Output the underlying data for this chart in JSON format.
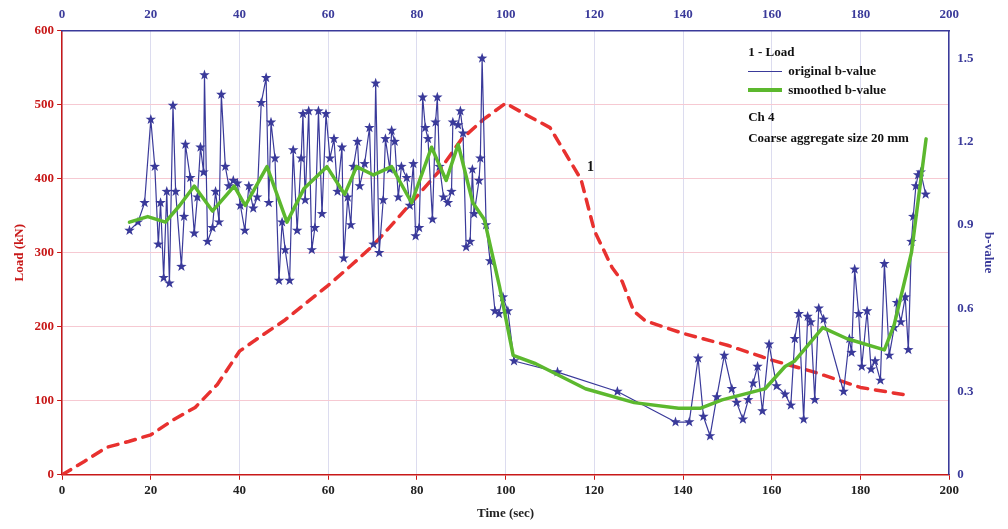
{
  "chart_data": {
    "type": "line",
    "xlabel": "Time (sec)",
    "ylabel": "Load (kN)",
    "y2label": "b-value",
    "xlim": [
      0,
      200
    ],
    "xticks": [
      0,
      20,
      40,
      60,
      80,
      100,
      120,
      140,
      160,
      180,
      200
    ],
    "x2lim": [
      0,
      200
    ],
    "x2ticks": [
      0,
      20,
      40,
      60,
      80,
      100,
      120,
      140,
      160,
      180,
      200
    ],
    "ylim": [
      0,
      600
    ],
    "yticks": [
      0,
      100,
      200,
      300,
      400,
      500,
      600
    ],
    "y2lim": [
      0,
      1.6
    ],
    "y2ticks": [
      0,
      0.3,
      0.6,
      0.9,
      1.2,
      1.5
    ],
    "grid": true,
    "legend": "top right",
    "annotations": [
      "1 - Load",
      "Ch 4",
      "Coarse aggregate size 20 mm",
      {
        "text": "1",
        "x": 117,
        "y": 399
      }
    ],
    "series": [
      {
        "color": "#e8312f",
        "line_style": "dashed",
        "marker": "none",
        "axis": "y",
        "x": [
          0,
          5,
          10,
          15,
          20,
          25,
          30,
          35,
          40,
          45,
          50,
          55,
          60,
          65,
          70,
          75,
          80,
          85,
          90,
          95,
          100,
          105,
          110,
          115,
          117,
          120,
          124,
          126.3,
          128.9,
          131.5,
          140,
          150,
          160,
          170,
          180,
          190
        ],
        "values": [
          0,
          18,
          37,
          45,
          54,
          74,
          91,
          122,
          167,
          188,
          208,
          232,
          256,
          282,
          309,
          342,
          376,
          410,
          453,
          480,
          502,
          485,
          469,
          419,
          399,
          330,
          280,
          261,
          221,
          208,
          191,
          175,
          155,
          138,
          118,
          108
        ]
      },
      {
        "name": "original b-value",
        "color": "#3a3a9a",
        "line_style": "solid",
        "marker": "star",
        "axis": "y2",
        "x": [
          15.2,
          17.1,
          18.6,
          20.0,
          20.9,
          21.7,
          22.2,
          22.9,
          23.6,
          24.2,
          25.0,
          25.6,
          26.9,
          27.5,
          27.8,
          28.9,
          29.8,
          30.5,
          31.2,
          31.9,
          32.1,
          32.8,
          33.9,
          34.6,
          35.4,
          35.9,
          36.8,
          37.6,
          38.6,
          39.5,
          40.2,
          41.2,
          42.1,
          43.1,
          44.0,
          44.9,
          46.0,
          46.6,
          47.1,
          48.0,
          48.9,
          49.6,
          50.3,
          51.3,
          52.1,
          53.0,
          53.9,
          54.3,
          54.8,
          55.6,
          56.3,
          57.0,
          57.8,
          58.6,
          59.5,
          60.4,
          61.3,
          62.1,
          63.1,
          63.5,
          64.4,
          65.1,
          65.7,
          66.6,
          67.1,
          68.2,
          69.3,
          70.2,
          70.7,
          71.5,
          72.4,
          72.9,
          73.9,
          74.3,
          75.0,
          75.8,
          76.5,
          77.7,
          78.4,
          79.2,
          79.7,
          80.5,
          81.3,
          81.9,
          82.5,
          83.5,
          84.2,
          84.6,
          85.1,
          86.0,
          87.0,
          87.8,
          88.1,
          89.3,
          89.8,
          90.4,
          91.1,
          92.0,
          92.5,
          92.9,
          94.0,
          94.3,
          94.7,
          95.6,
          96.5,
          97.6,
          98.5,
          99.4,
          100.5,
          101.9,
          111.7,
          125.2,
          138.3,
          141.4,
          143.4,
          144.6,
          146.1,
          147.6,
          149.3,
          151.0,
          152.1,
          153.5,
          154.7,
          155.8,
          156.8,
          157.9,
          159.4,
          161.1,
          163.0,
          164.3,
          165.2,
          166.1,
          167.2,
          168.1,
          168.8,
          169.7,
          170.6,
          171.7,
          176.2,
          177.5,
          178.0,
          178.7,
          179.6,
          180.3,
          181.5,
          182.4,
          183.3,
          184.5,
          185.4,
          186.5,
          187.6,
          188.2,
          189.1,
          190.1,
          190.8,
          191.5,
          191.9,
          192.5,
          193.0,
          193.6,
          194.7
        ],
        "values": [
          0.88,
          0.91,
          0.98,
          1.28,
          1.11,
          0.83,
          0.98,
          0.71,
          1.02,
          0.69,
          1.33,
          1.02,
          0.75,
          0.93,
          1.19,
          1.07,
          0.87,
          1.0,
          1.18,
          1.09,
          1.44,
          0.84,
          0.89,
          1.02,
          0.91,
          1.37,
          1.11,
          1.04,
          1.06,
          1.05,
          0.97,
          0.88,
          1.04,
          0.96,
          1.0,
          1.34,
          1.43,
          0.98,
          1.27,
          1.14,
          0.7,
          0.91,
          0.81,
          0.7,
          1.17,
          0.88,
          1.14,
          1.3,
          0.99,
          1.31,
          0.81,
          0.89,
          1.31,
          0.94,
          1.3,
          1.14,
          1.21,
          1.02,
          1.18,
          0.78,
          1.0,
          0.9,
          1.11,
          1.2,
          1.04,
          1.12,
          1.25,
          0.83,
          1.41,
          0.8,
          0.99,
          1.21,
          1.1,
          1.24,
          1.2,
          1.0,
          1.11,
          1.07,
          0.97,
          1.12,
          0.86,
          0.89,
          1.36,
          1.25,
          1.21,
          0.92,
          1.27,
          1.36,
          1.11,
          1.0,
          0.98,
          1.02,
          1.27,
          1.26,
          1.31,
          1.23,
          0.82,
          0.84,
          1.1,
          0.94,
          1.06,
          1.14,
          1.5,
          0.9,
          0.77,
          0.59,
          0.58,
          0.64,
          0.59,
          0.41,
          0.37,
          0.3,
          0.19,
          0.19,
          0.42,
          0.21,
          0.14,
          0.28,
          0.43,
          0.31,
          0.26,
          0.2,
          0.27,
          0.33,
          0.39,
          0.23,
          0.47,
          0.32,
          0.29,
          0.25,
          0.49,
          0.58,
          0.2,
          0.57,
          0.55,
          0.27,
          0.6,
          0.56,
          0.3,
          0.49,
          0.44,
          0.74,
          0.58,
          0.39,
          0.59,
          0.38,
          0.41,
          0.34,
          0.76,
          0.43,
          0.53,
          0.62,
          0.55,
          0.64,
          0.45,
          0.84,
          0.93,
          1.04,
          1.08,
          1.09,
          1.01
        ]
      },
      {
        "name": "smoothed b-value",
        "color": "#5cb82e",
        "line_style": "solid",
        "marker": "none",
        "axis": "y2",
        "x": [
          15.2,
          19.3,
          23.3,
          26.5,
          29.8,
          33.9,
          38.8,
          41.3,
          46.2,
          50.7,
          54.5,
          59.7,
          63.7,
          66.4,
          70.2,
          74.3,
          78.8,
          83.3,
          86.6,
          89.3,
          92.6,
          95.2,
          98.6,
          101.7,
          106.8,
          118,
          129,
          139,
          144,
          148.8,
          158.5,
          163,
          165.2,
          171.5,
          177,
          185.4,
          187.6,
          191.5,
          194.8
        ],
        "values": [
          0.91,
          0.93,
          0.91,
          0.97,
          1.04,
          0.95,
          1.04,
          0.97,
          1.11,
          0.91,
          1.03,
          1.11,
          1.01,
          1.11,
          1.08,
          1.11,
          0.98,
          1.18,
          1.06,
          1.19,
          0.98,
          0.92,
          0.68,
          0.43,
          0.4,
          0.31,
          0.26,
          0.24,
          0.24,
          0.27,
          0.31,
          0.39,
          0.41,
          0.53,
          0.49,
          0.45,
          0.54,
          0.8,
          1.21
        ]
      }
    ]
  }
}
